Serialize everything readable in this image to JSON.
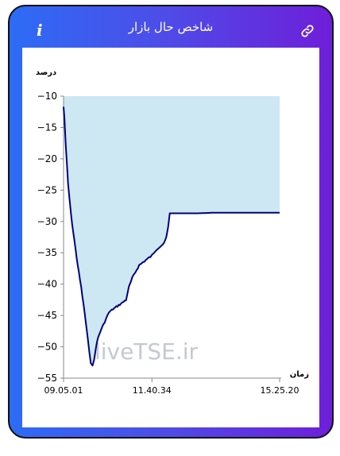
{
  "header": {
    "title": "شاخص حال بازار",
    "info_icon": "info-icon",
    "link_icon": "link-icon"
  },
  "chart_data": {
    "type": "area",
    "ylabel": "درصد",
    "xlabel": "زمان",
    "watermark": "liveTSE.ir",
    "ylim": [
      -55,
      -10
    ],
    "yticks": [
      -10,
      -15,
      -20,
      -25,
      -30,
      -35,
      -40,
      -45,
      -50,
      -55
    ],
    "xlim": [
      "09.05.01",
      "15.25.20"
    ],
    "xticks": [
      "09.05.01",
      "11.40.34",
      "15.25.20"
    ],
    "line_color": "#000080",
    "fill_color": "#cde8f2",
    "series": [
      {
        "x": [
          "09.05.01",
          "09.06.30",
          "09.09.00",
          "09.13.00",
          "09.18.00",
          "09.24.00",
          "09.30.00",
          "09.36.00",
          "09.42.00",
          "09.48.00",
          "09.53.00",
          "09.56.00",
          "09.59.00",
          "10.02.00",
          "10.06.00",
          "10.10.00",
          "10.15.00",
          "10.20.00",
          "10.25.00",
          "10.32.00",
          "10.40.00",
          "10.48.00",
          "10.55.00",
          "11.00.00",
          "11.06.00",
          "11.12.00",
          "11.18.00",
          "11.25.00",
          "11.32.00",
          "11.40.00",
          "11.48.00",
          "11.55.00",
          "12.02.00",
          "12.06.00",
          "12.09.00",
          "12.11.00",
          "12.12.00",
          "12.30.00",
          "13.00.00",
          "13.30.00",
          "14.00.00",
          "14.30.00",
          "15.00.00",
          "15.25.20"
        ],
        "y": [
          -11.7,
          -13.5,
          -18.0,
          -24.0,
          -28.8,
          -33.0,
          -37.0,
          -40.5,
          -44.5,
          -49.0,
          -52.5,
          -53.1,
          -52.0,
          -50.0,
          -48.5,
          -47.5,
          -46.5,
          -45.5,
          -44.5,
          -44.0,
          -43.5,
          -43.0,
          -42.5,
          -40.5,
          -39.0,
          -38.0,
          -37.0,
          -36.5,
          -36.0,
          -35.5,
          -34.5,
          -34.0,
          -33.5,
          -32.5,
          -31.0,
          -29.5,
          -28.7,
          -28.7,
          -28.7,
          -28.6,
          -28.6,
          -28.6,
          -28.6,
          -28.6
        ]
      }
    ]
  }
}
